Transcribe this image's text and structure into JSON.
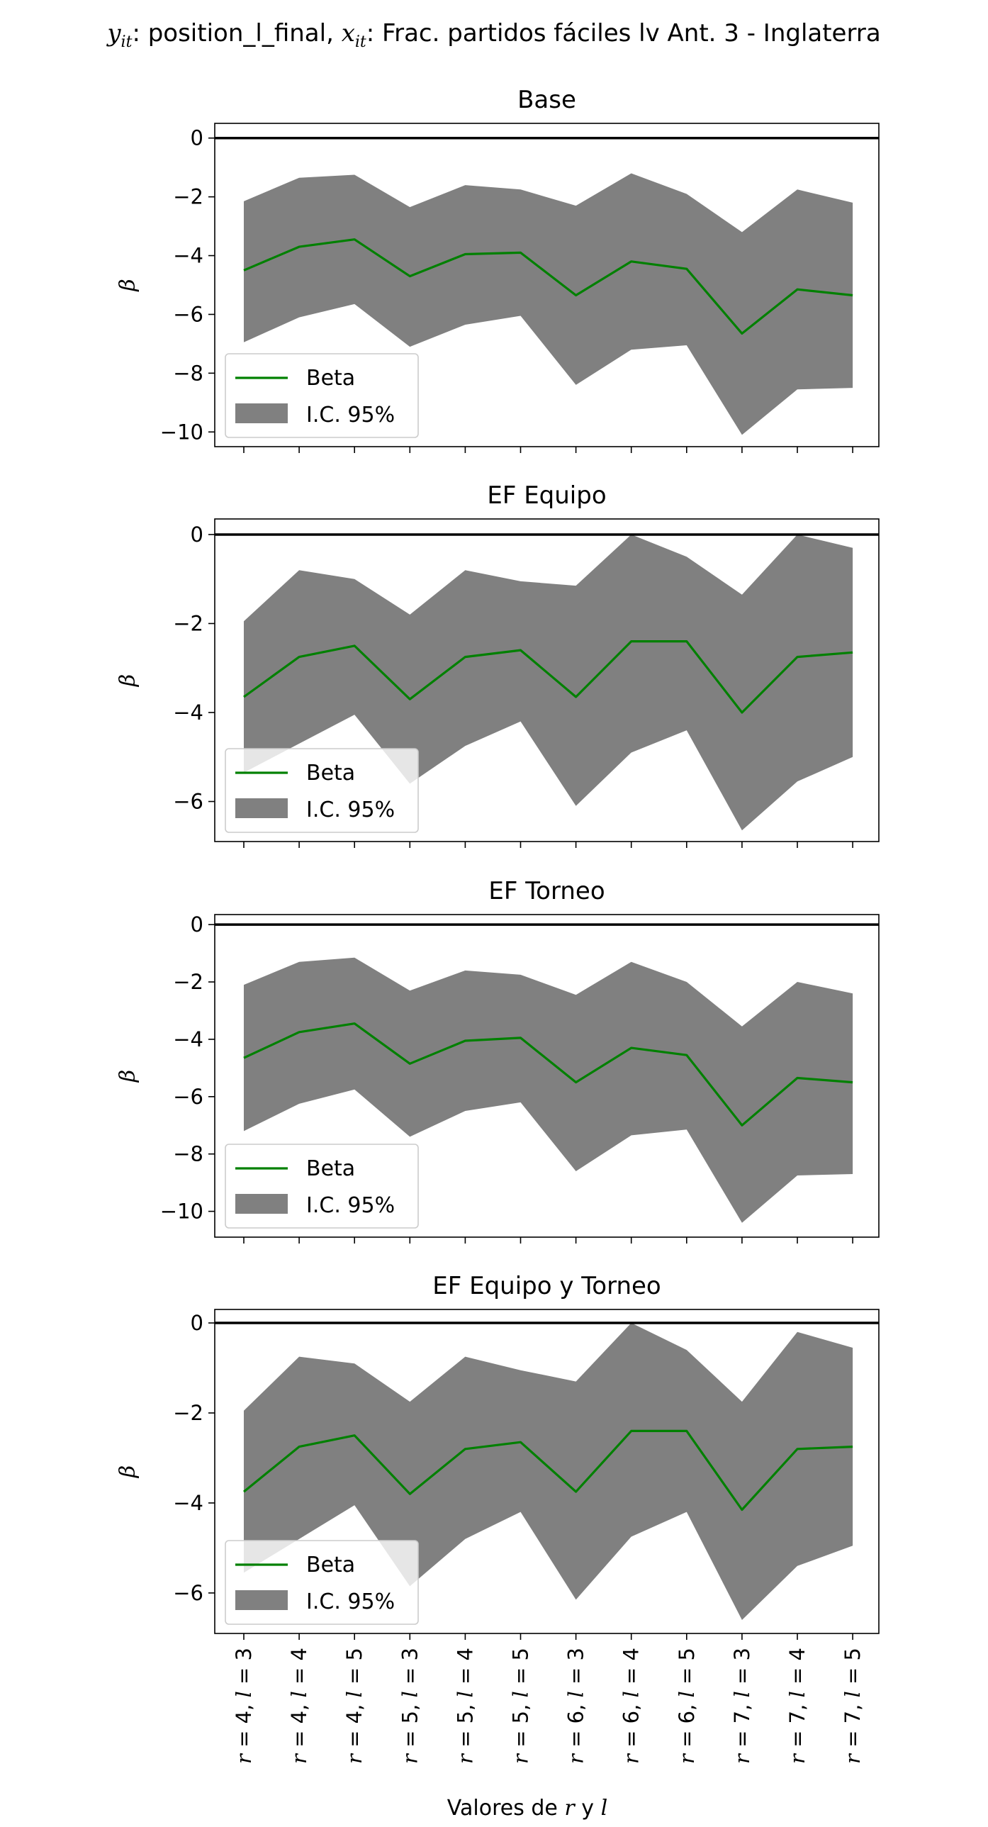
{
  "figure": {
    "suptitle": "y_it: position_l_final, x_it: Frac. partidos fáciles lv Ant. 3 - Inglaterra",
    "suptitle_parts": [
      "y",
      "it",
      ": position_l_final, ",
      "x",
      "it",
      ": Frac. partidos fáciles lv Ant. 3 - Inglaterra"
    ],
    "xlabel_parts": [
      "Valores de ",
      "r",
      " y ",
      "l"
    ]
  },
  "chart_data": [
    {
      "type": "line",
      "title": "Base",
      "ylabel": "β",
      "ylim": [
        -10.5,
        0.5
      ],
      "yticks": [
        0,
        -2,
        -4,
        -6,
        -8,
        -10
      ],
      "yticklabels": [
        "0",
        "−2",
        "−4",
        "−6",
        "−8",
        "−10"
      ],
      "grid": false,
      "legend": "lower-left",
      "categories": [
        "r = 4, l = 3",
        "r = 4, l = 4",
        "r = 4, l = 5",
        "r = 5, l = 3",
        "r = 5, l = 4",
        "r = 5, l = 5",
        "r = 6, l = 3",
        "r = 6, l = 4",
        "r = 6, l = 5",
        "r = 7, l = 3",
        "r = 7, l = 4",
        "r = 7, l = 5"
      ],
      "series": [
        {
          "name": "Beta",
          "color": "#008000",
          "values": [
            -4.5,
            -3.7,
            -3.45,
            -4.7,
            -3.95,
            -3.9,
            -5.35,
            -4.2,
            -4.45,
            -6.65,
            -5.15,
            -5.35
          ]
        },
        {
          "name": "I.C. 95%",
          "color": "#808080",
          "upper": [
            -2.15,
            -1.35,
            -1.25,
            -2.35,
            -1.6,
            -1.75,
            -2.3,
            -1.2,
            -1.9,
            -3.2,
            -1.75,
            -2.2
          ],
          "lower": [
            -6.95,
            -6.1,
            -5.65,
            -7.1,
            -6.35,
            -6.05,
            -8.4,
            -7.2,
            -7.05,
            -10.1,
            -8.55,
            -8.5
          ]
        }
      ]
    },
    {
      "type": "line",
      "title": "EF Equipo",
      "ylabel": "β",
      "ylim": [
        -6.9,
        0.35
      ],
      "yticks": [
        0,
        -2,
        -4,
        -6
      ],
      "yticklabels": [
        "0",
        "−2",
        "−4",
        "−6"
      ],
      "grid": false,
      "legend": "lower-left",
      "categories": [
        "r = 4, l = 3",
        "r = 4, l = 4",
        "r = 4, l = 5",
        "r = 5, l = 3",
        "r = 5, l = 4",
        "r = 5, l = 5",
        "r = 6, l = 3",
        "r = 6, l = 4",
        "r = 6, l = 5",
        "r = 7, l = 3",
        "r = 7, l = 4",
        "r = 7, l = 5"
      ],
      "series": [
        {
          "name": "Beta",
          "color": "#008000",
          "values": [
            -3.65,
            -2.75,
            -2.5,
            -3.7,
            -2.75,
            -2.6,
            -3.65,
            -2.4,
            -2.4,
            -4.0,
            -2.75,
            -2.65
          ]
        },
        {
          "name": "I.C. 95%",
          "color": "#808080",
          "upper": [
            -1.95,
            -0.8,
            -1.0,
            -1.8,
            -0.8,
            -1.05,
            -1.15,
            0.0,
            -0.5,
            -1.35,
            0.0,
            -0.3
          ],
          "lower": [
            -5.35,
            -4.7,
            -4.05,
            -5.6,
            -4.75,
            -4.2,
            -6.1,
            -4.9,
            -4.4,
            -6.65,
            -5.55,
            -5.0
          ]
        }
      ]
    },
    {
      "type": "line",
      "title": "EF Torneo",
      "ylabel": "β",
      "ylim": [
        -10.9,
        0.35
      ],
      "yticks": [
        0,
        -2,
        -4,
        -6,
        -8,
        -10
      ],
      "yticklabels": [
        "0",
        "−2",
        "−4",
        "−6",
        "−8",
        "−10"
      ],
      "grid": false,
      "legend": "lower-left",
      "categories": [
        "r = 4, l = 3",
        "r = 4, l = 4",
        "r = 4, l = 5",
        "r = 5, l = 3",
        "r = 5, l = 4",
        "r = 5, l = 5",
        "r = 6, l = 3",
        "r = 6, l = 4",
        "r = 6, l = 5",
        "r = 7, l = 3",
        "r = 7, l = 4",
        "r = 7, l = 5"
      ],
      "series": [
        {
          "name": "Beta",
          "color": "#008000",
          "values": [
            -4.65,
            -3.75,
            -3.45,
            -4.85,
            -4.05,
            -3.95,
            -5.5,
            -4.3,
            -4.55,
            -7.0,
            -5.35,
            -5.5
          ]
        },
        {
          "name": "I.C. 95%",
          "color": "#808080",
          "upper": [
            -2.1,
            -1.3,
            -1.15,
            -2.3,
            -1.6,
            -1.75,
            -2.45,
            -1.3,
            -2.0,
            -3.55,
            -2.0,
            -2.4
          ],
          "lower": [
            -7.2,
            -6.25,
            -5.75,
            -7.4,
            -6.5,
            -6.2,
            -8.6,
            -7.35,
            -7.15,
            -10.4,
            -8.75,
            -8.7
          ]
        }
      ]
    },
    {
      "type": "line",
      "title": "EF Equipo y Torneo",
      "ylabel": "β",
      "ylim": [
        -6.9,
        0.3
      ],
      "yticks": [
        0,
        -2,
        -4,
        -6
      ],
      "yticklabels": [
        "0",
        "−2",
        "−4",
        "−6"
      ],
      "grid": false,
      "legend": "lower-left",
      "categories": [
        "r = 4, l = 3",
        "r = 4, l = 4",
        "r = 4, l = 5",
        "r = 5, l = 3",
        "r = 5, l = 4",
        "r = 5, l = 5",
        "r = 6, l = 3",
        "r = 6, l = 4",
        "r = 6, l = 5",
        "r = 7, l = 3",
        "r = 7, l = 4",
        "r = 7, l = 5"
      ],
      "series": [
        {
          "name": "Beta",
          "color": "#008000",
          "values": [
            -3.75,
            -2.75,
            -2.5,
            -3.8,
            -2.8,
            -2.65,
            -3.75,
            -2.4,
            -2.4,
            -4.15,
            -2.8,
            -2.75
          ]
        },
        {
          "name": "I.C. 95%",
          "color": "#808080",
          "upper": [
            -1.95,
            -0.75,
            -0.9,
            -1.75,
            -0.75,
            -1.05,
            -1.3,
            0.0,
            -0.6,
            -1.75,
            -0.2,
            -0.55
          ],
          "lower": [
            -5.55,
            -4.8,
            -4.05,
            -5.85,
            -4.8,
            -4.2,
            -6.15,
            -4.75,
            -4.2,
            -6.6,
            -5.4,
            -4.95
          ]
        }
      ]
    }
  ]
}
